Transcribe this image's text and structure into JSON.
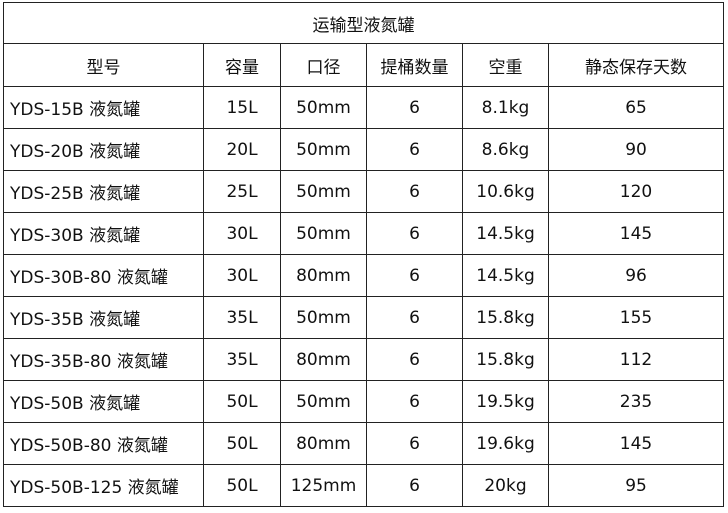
{
  "title": "运输型液氮罐",
  "headers": [
    "型号",
    "容量",
    "口径",
    "提桶数量",
    "空重",
    "静态保存天数"
  ],
  "rows": [
    [
      "YDS-15B 液氮罐",
      "15L",
      "50mm",
      "6",
      "8.1kg",
      "65"
    ],
    [
      "YDS-20B 液氮罐",
      "20L",
      "50mm",
      "6",
      "8.6kg",
      "90"
    ],
    [
      "YDS-25B 液氮罐",
      "25L",
      "50mm",
      "6",
      "10.6kg",
      "120"
    ],
    [
      "YDS-30B 液氮罐",
      "30L",
      "50mm",
      "6",
      "14.5kg",
      "145"
    ],
    [
      "YDS-30B-80 液氮罐",
      "30L",
      "80mm",
      "6",
      "14.5kg",
      "96"
    ],
    [
      "YDS-35B 液氮罐",
      "35L",
      "50mm",
      "6",
      "15.8kg",
      "155"
    ],
    [
      "YDS-35B-80 液氮罐",
      "35L",
      "80mm",
      "6",
      "15.8kg",
      "112"
    ],
    [
      "YDS-50B 液氮罐",
      "50L",
      "50mm",
      "6",
      "19.5kg",
      "235"
    ],
    [
      "YDS-50B-80 液氮罐",
      "50L",
      "80mm",
      "6",
      "19.6kg",
      "145"
    ],
    [
      "YDS-50B-125 液氮罐",
      "50L",
      "125mm",
      "6",
      "20kg",
      "95"
    ]
  ]
}
